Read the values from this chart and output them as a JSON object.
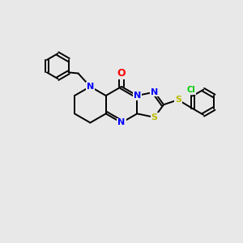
{
  "background_color": "#e8e8e8",
  "bond_color": "#000000",
  "atom_colors": {
    "N": "#0000ff",
    "O": "#ff0000",
    "S": "#bbbb00",
    "Cl": "#00cc00",
    "C": "#000000"
  },
  "font_size": 8,
  "figsize": [
    3.0,
    3.0
  ],
  "dpi": 100,
  "lw": 1.4
}
